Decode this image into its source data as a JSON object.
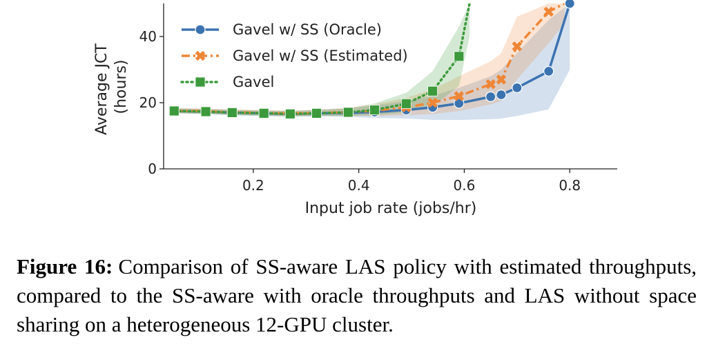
{
  "chart_data": {
    "type": "line",
    "xlabel": "Input job rate (jobs/hr)",
    "ylabel_lines": [
      "Average JCT",
      "(hours)"
    ],
    "xticks": [
      0.2,
      0.4,
      0.6,
      0.8
    ],
    "yticks": [
      0,
      20,
      40
    ],
    "xlim": [
      0.03,
      0.89
    ],
    "ylim": [
      0,
      50
    ],
    "legend_position": "top-left",
    "grid": false,
    "series": [
      {
        "name": "Gavel w/ SS (Oracle)",
        "color": "#3b73b0",
        "marker": "circle",
        "dash": "solid",
        "x": [
          0.05,
          0.11,
          0.16,
          0.22,
          0.27,
          0.32,
          0.38,
          0.43,
          0.49,
          0.54,
          0.59,
          0.65,
          0.67,
          0.7,
          0.76,
          0.8
        ],
        "y": [
          17.5,
          17.3,
          17.0,
          16.8,
          16.6,
          16.8,
          16.9,
          17.2,
          17.8,
          18.6,
          19.8,
          21.8,
          22.4,
          24.5,
          29.5,
          50.0
        ],
        "band_low": [
          16.8,
          16.6,
          16.2,
          16.0,
          15.8,
          15.9,
          15.7,
          15.4,
          15.2,
          14.8,
          14.8,
          15.0,
          15.2,
          16.0,
          18.0,
          30.0
        ],
        "band_high": [
          18.3,
          18.1,
          17.8,
          17.6,
          17.5,
          17.8,
          18.3,
          19.2,
          20.5,
          22.0,
          24.5,
          28.0,
          30.0,
          35.0,
          45.0,
          50.0
        ]
      },
      {
        "name": "Gavel w/ SS (Estimated)",
        "color": "#ef8636",
        "marker": "x",
        "dash": "dashdot",
        "x": [
          0.05,
          0.11,
          0.16,
          0.22,
          0.27,
          0.32,
          0.38,
          0.43,
          0.49,
          0.54,
          0.59,
          0.65,
          0.67,
          0.7,
          0.76,
          0.79
        ],
        "y": [
          17.6,
          17.4,
          17.1,
          16.9,
          16.7,
          16.9,
          17.1,
          17.6,
          18.6,
          20.0,
          22.0,
          25.6,
          27.0,
          37.0,
          47.5,
          50.0
        ],
        "band_low": [
          16.9,
          16.7,
          16.4,
          16.2,
          16.0,
          16.1,
          16.0,
          16.0,
          16.2,
          16.6,
          17.5,
          19.5,
          20.5,
          27.0,
          38.0,
          44.0
        ],
        "band_high": [
          18.4,
          18.2,
          18.0,
          17.8,
          17.6,
          17.9,
          18.5,
          19.5,
          21.5,
          24.0,
          28.0,
          32.5,
          35.0,
          46.0,
          50.0,
          50.0
        ]
      },
      {
        "name": "Gavel",
        "color": "#3c9a3c",
        "marker": "square",
        "dash": "dotted",
        "x": [
          0.05,
          0.11,
          0.16,
          0.22,
          0.27,
          0.32,
          0.38,
          0.43,
          0.49,
          0.54,
          0.59,
          0.61
        ],
        "y": [
          17.5,
          17.3,
          17.0,
          16.8,
          16.6,
          16.8,
          17.1,
          17.8,
          19.7,
          23.5,
          34.0,
          50.0
        ],
        "band_low": [
          16.8,
          16.6,
          16.2,
          16.0,
          15.8,
          15.9,
          16.0,
          16.2,
          17.0,
          19.0,
          25.0,
          40.0
        ],
        "band_high": [
          18.3,
          18.1,
          17.8,
          17.6,
          17.5,
          17.8,
          18.3,
          19.8,
          23.0,
          29.5,
          43.0,
          50.0
        ]
      }
    ]
  },
  "caption": {
    "label": "Figure 16:",
    "text": "Comparison of SS-aware LAS policy with estimated throughputs, compared to the SS-aware with oracle throughputs and LAS without space sharing on a heterogeneous 12-GPU cluster."
  }
}
